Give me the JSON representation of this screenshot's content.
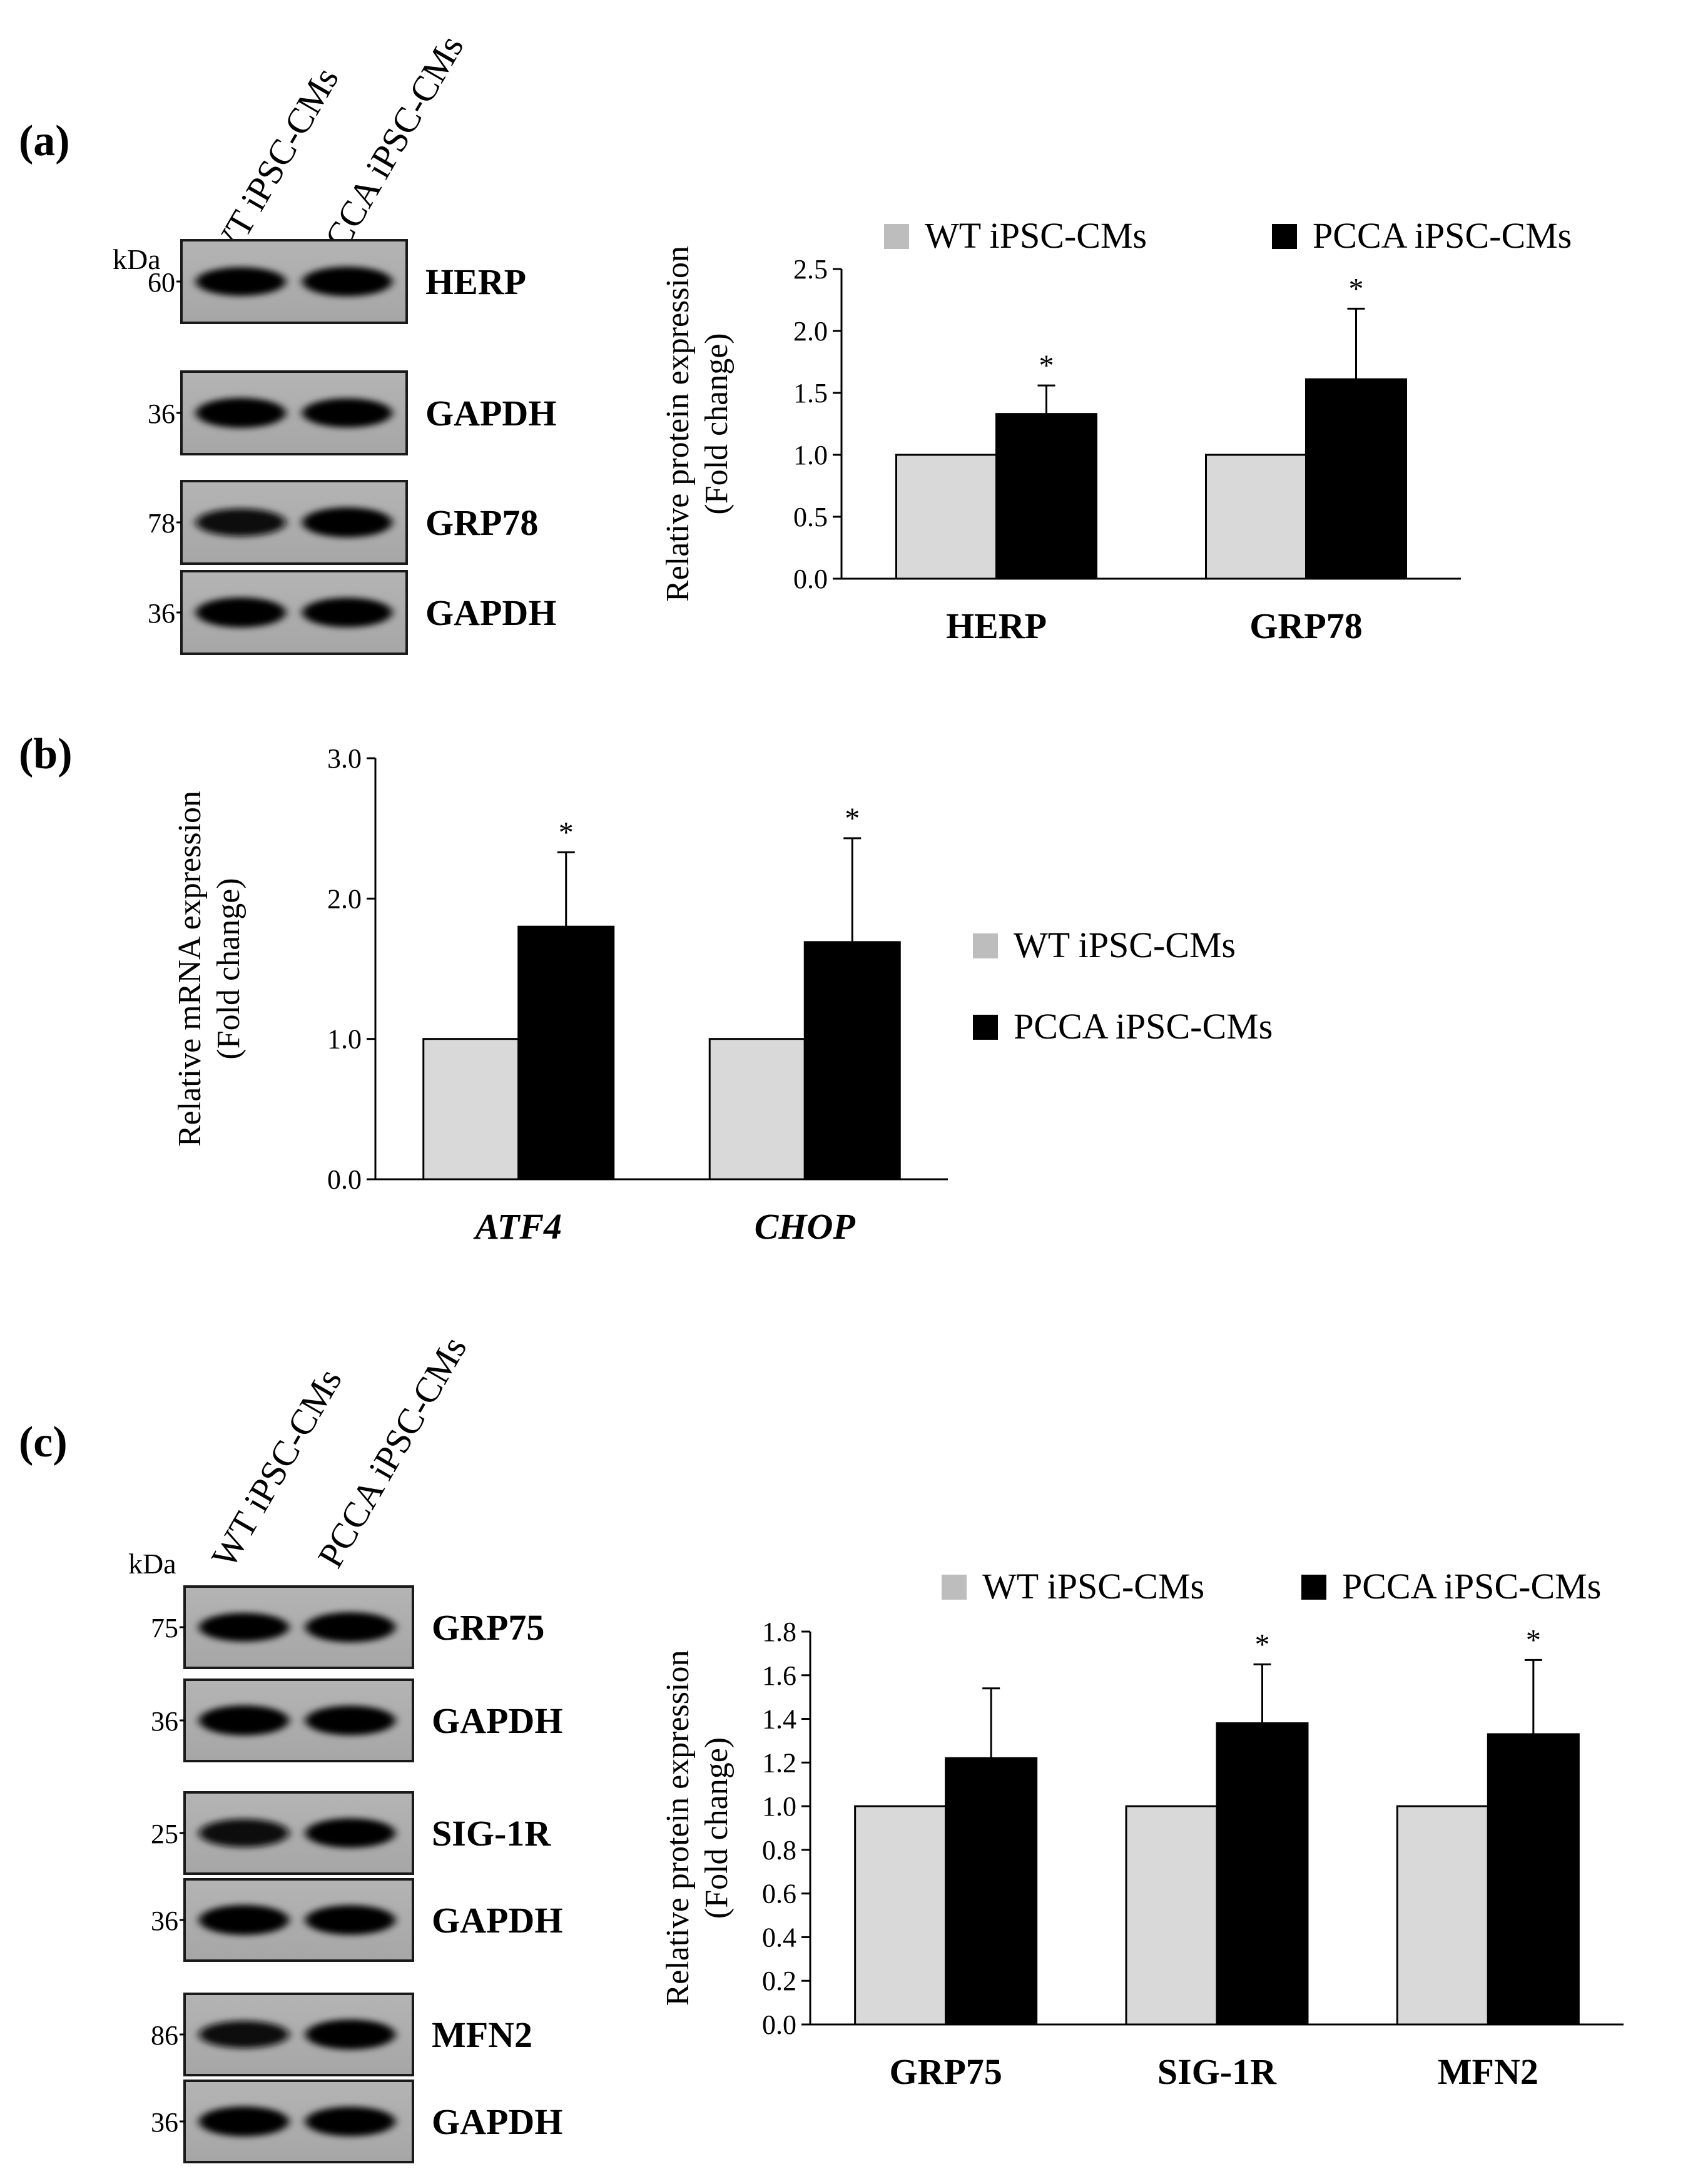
{
  "panels": [
    {
      "label": "(a)",
      "blot": {
        "kda_label": "kDa",
        "lanes": [
          "WT iPSC-CMs",
          "PCCA iPSC-CMs"
        ],
        "bands": [
          {
            "protein": "HERP",
            "kda": "60",
            "lane_intensity": [
              0.85,
              0.95
            ]
          },
          {
            "protein": "GAPDH",
            "kda": "36",
            "lane_intensity": [
              1.0,
              0.9
            ]
          },
          {
            "protein": "GRP78",
            "kda": "78",
            "lane_intensity": [
              0.75,
              1.0
            ]
          },
          {
            "protein": "GAPDH",
            "kda": "36",
            "lane_intensity": [
              1.0,
              0.95
            ]
          }
        ]
      }
    },
    {
      "label": "(b)"
    },
    {
      "label": "(c)",
      "blot": {
        "kda_label": "kDa",
        "lanes": [
          "WT iPSC-CMs",
          "PCCA iPSC-CMs"
        ],
        "bands": [
          {
            "protein": "GRP75",
            "kda": "75",
            "lane_intensity": [
              0.85,
              1.0
            ]
          },
          {
            "protein": "GAPDH",
            "kda": "36",
            "lane_intensity": [
              1.0,
              0.95
            ]
          },
          {
            "protein": "SIG-1R",
            "kda": "25",
            "lane_intensity": [
              0.8,
              0.95
            ]
          },
          {
            "protein": "GAPDH",
            "kda": "36",
            "lane_intensity": [
              1.0,
              0.95
            ]
          },
          {
            "protein": "MFN2",
            "kda": "86",
            "lane_intensity": [
              0.7,
              1.0
            ]
          },
          {
            "protein": "GAPDH",
            "kda": "36",
            "lane_intensity": [
              1.0,
              0.95
            ]
          }
        ]
      }
    }
  ],
  "chart_data": [
    {
      "type": "bar",
      "panel": "(a)",
      "ylabel": [
        "Relative protein expression",
        "(Fold change)"
      ],
      "categories": [
        "HERP",
        "GRP78"
      ],
      "category_style": "bold",
      "series": [
        {
          "name": "WT iPSC-CMs",
          "color": "#d9d9d9",
          "values": [
            1.0,
            1.0
          ],
          "errors": [
            0,
            0
          ],
          "significant": [
            false,
            false
          ]
        },
        {
          "name": "PCCA iPSC-CMs",
          "color": "#000000",
          "values": [
            1.33,
            1.61
          ],
          "errors": [
            0.23,
            0.57
          ],
          "significant": [
            true,
            true
          ]
        }
      ],
      "ylim": [
        0,
        2.5
      ],
      "yticks": [
        "0.0",
        "0.5",
        "1.0",
        "1.5",
        "2.0",
        "2.5"
      ],
      "significance_marker": "*",
      "legend": "top",
      "grid": false
    },
    {
      "type": "bar",
      "panel": "(b)",
      "ylabel": [
        "Relative mRNA expression",
        "(Fold change)"
      ],
      "categories": [
        "ATF4",
        "CHOP"
      ],
      "category_style": "bold-italic",
      "series": [
        {
          "name": "WT iPSC-CMs",
          "color": "#d9d9d9",
          "values": [
            1.0,
            1.0
          ],
          "errors": [
            0,
            0
          ],
          "significant": [
            false,
            false
          ]
        },
        {
          "name": "PCCA iPSC-CMs",
          "color": "#000000",
          "values": [
            1.8,
            1.69
          ],
          "errors": [
            0.53,
            0.74
          ],
          "significant": [
            true,
            true
          ]
        }
      ],
      "ylim": [
        0,
        3.0
      ],
      "yticks": [
        "0.0",
        "1.0",
        "2.0",
        "3.0"
      ],
      "significance_marker": "*",
      "legend": "right",
      "grid": false
    },
    {
      "type": "bar",
      "panel": "(c)",
      "ylabel": [
        "Relative protein expression",
        "(Fold change)"
      ],
      "categories": [
        "GRP75",
        "SIG-1R",
        "MFN2"
      ],
      "category_style": "bold",
      "series": [
        {
          "name": "WT iPSC-CMs",
          "color": "#d9d9d9",
          "values": [
            1.0,
            1.0,
            1.0
          ],
          "errors": [
            0,
            0,
            0
          ],
          "significant": [
            false,
            false,
            false
          ]
        },
        {
          "name": "PCCA iPSC-CMs",
          "color": "#000000",
          "values": [
            1.22,
            1.38,
            1.33
          ],
          "errors": [
            0.32,
            0.27,
            0.34
          ],
          "significant": [
            false,
            true,
            true
          ]
        }
      ],
      "ylim": [
        0,
        1.8
      ],
      "yticks": [
        "0.0",
        "0.2",
        "0.4",
        "0.6",
        "0.8",
        "1.0",
        "1.2",
        "1.4",
        "1.6",
        "1.8"
      ],
      "significance_marker": "*",
      "legend": "top",
      "grid": false
    }
  ]
}
